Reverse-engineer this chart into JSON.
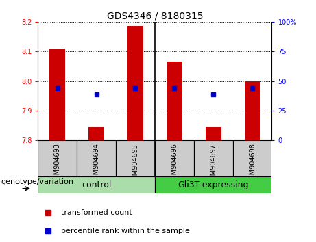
{
  "title": "GDS4346 / 8180315",
  "samples": [
    "GSM904693",
    "GSM904694",
    "GSM904695",
    "GSM904696",
    "GSM904697",
    "GSM904698"
  ],
  "bar_top": [
    8.11,
    7.845,
    8.185,
    8.065,
    7.845,
    8.0
  ],
  "bar_bottom": 7.8,
  "percentile_values": [
    7.975,
    7.955,
    7.975,
    7.975,
    7.955,
    7.975
  ],
  "ylim": [
    7.8,
    8.2
  ],
  "yticks_left": [
    7.8,
    7.9,
    8.0,
    8.1,
    8.2
  ],
  "yticks_right": [
    0,
    25,
    50,
    75,
    100
  ],
  "bar_color": "#cc0000",
  "percentile_color": "#0000cc",
  "legend_items": [
    "transformed count",
    "percentile rank within the sample"
  ],
  "genotype_label": "genotype/variation",
  "group_label_control": "control",
  "group_label_gli": "Gli3T-expressing",
  "green_light": "#aaddaa",
  "green_dark": "#44cc44",
  "sample_box_color": "#cccccc",
  "title_fontsize": 10,
  "tick_fontsize": 7,
  "legend_fontsize": 8,
  "group_fontsize": 9,
  "genotype_fontsize": 8
}
